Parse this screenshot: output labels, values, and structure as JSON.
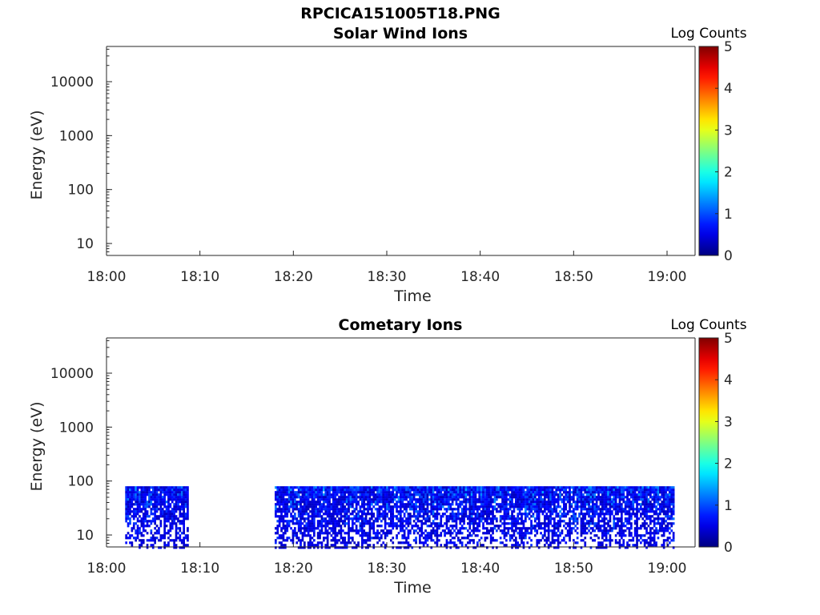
{
  "figure": {
    "title": "RPCICA151005T18.PNG"
  },
  "chart_data": [
    {
      "type": "heatmap",
      "title": "Solar Wind Ions",
      "xlabel": "Time",
      "ylabel": "Energy (eV)",
      "x_ticks": [
        "18:00",
        "18:10",
        "18:20",
        "18:30",
        "18:40",
        "18:50",
        "19:00"
      ],
      "xlim": [
        "18:00",
        "19:03"
      ],
      "y_scale": "log",
      "y_ticks": [
        10,
        100,
        1000,
        10000
      ],
      "ylim": [
        6,
        45000
      ],
      "colorbar": {
        "label": "Log Counts",
        "ticks": [
          0,
          1,
          2,
          3,
          4,
          5
        ],
        "range": [
          0,
          5
        ],
        "colormap": "jet"
      },
      "data": []
    },
    {
      "type": "heatmap",
      "title": "Cometary Ions",
      "xlabel": "Time",
      "ylabel": "Energy (eV)",
      "x_ticks": [
        "18:00",
        "18:10",
        "18:20",
        "18:30",
        "18:40",
        "18:50",
        "19:00"
      ],
      "xlim": [
        "18:00",
        "19:03"
      ],
      "y_scale": "log",
      "y_ticks": [
        10,
        100,
        1000,
        10000
      ],
      "ylim": [
        6,
        45000
      ],
      "colorbar": {
        "label": "Log Counts",
        "ticks": [
          0,
          1,
          2,
          3,
          4,
          5
        ],
        "range": [
          0,
          5
        ],
        "colormap": "jet"
      },
      "data": [
        {
          "t_start": "18:02",
          "t_end": "18:08:40",
          "energy_min": 6,
          "energy_max": 80,
          "log_counts_range": [
            0.3,
            1.5
          ]
        },
        {
          "t_start": "18:18",
          "t_end": "19:00:40",
          "energy_min": 6,
          "energy_max": 80,
          "log_counts_range": [
            0.3,
            1.6
          ]
        }
      ]
    }
  ]
}
